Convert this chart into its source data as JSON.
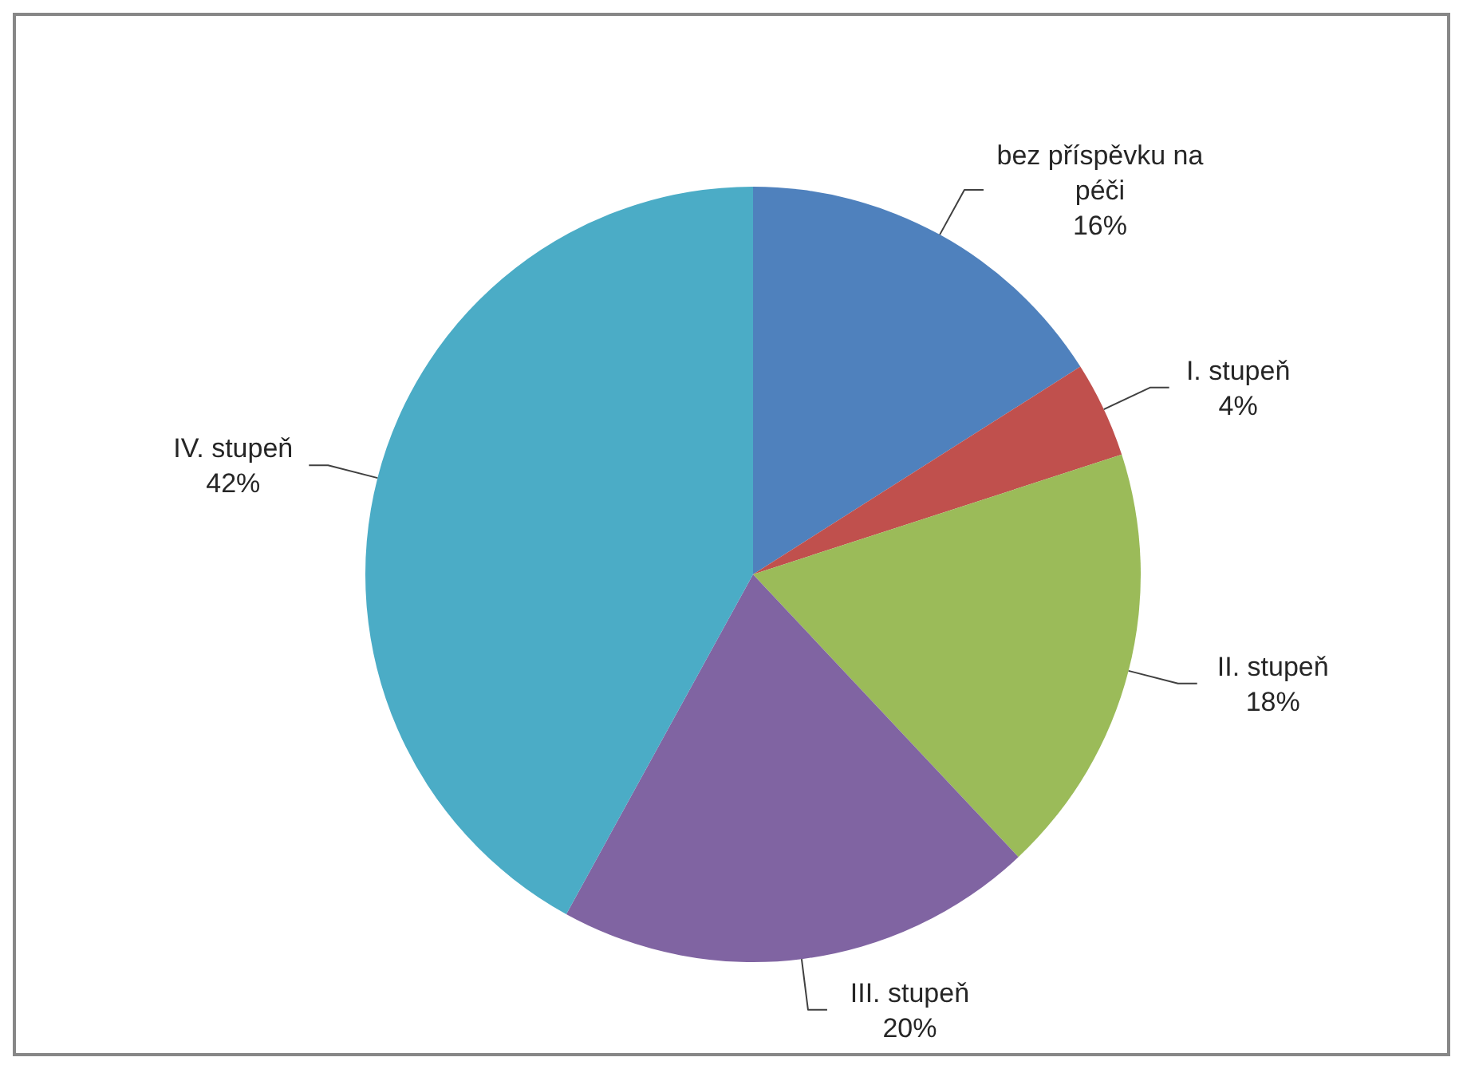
{
  "chart_data": {
    "type": "pie",
    "categories": [
      "bez příspěvku na péči",
      "I. stupeň",
      "II. stupeň",
      "III. stupeň",
      "IV. stupeň"
    ],
    "values": [
      16,
      4,
      18,
      20,
      42
    ],
    "colors": [
      "#4f81bd",
      "#c0504d",
      "#9bbb59",
      "#8064a2",
      "#4bacc6"
    ],
    "value_labels": [
      "16%",
      "4%",
      "18%",
      "20%",
      "42%"
    ]
  }
}
